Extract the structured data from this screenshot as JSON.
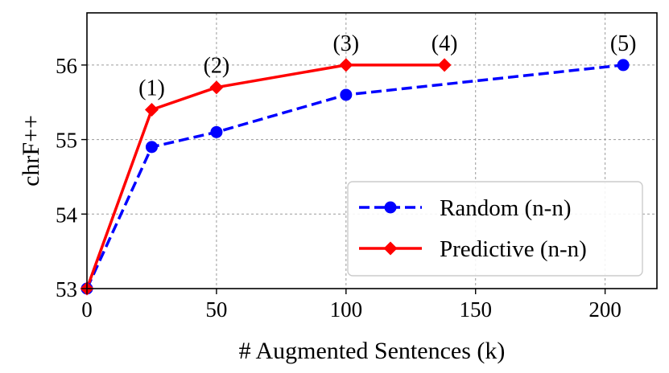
{
  "chart_data": {
    "type": "line",
    "title": "",
    "xlabel": "# Augmented Sentences (k)",
    "ylabel": "chrF++",
    "xlim": [
      0,
      220
    ],
    "ylim": [
      53,
      56.7
    ],
    "x_ticks": [
      0,
      50,
      100,
      150,
      200
    ],
    "y_ticks": [
      53,
      54,
      55,
      56
    ],
    "grid": true,
    "grid_style": "dashed",
    "legend_position": "lower-right",
    "series": [
      {
        "name": "Random (n-n)",
        "color": "#0000ff",
        "line_style": "dashed",
        "marker": "circle",
        "x": [
          0,
          25,
          50,
          100,
          207
        ],
        "y": [
          53.0,
          54.9,
          55.1,
          55.6,
          56.0
        ]
      },
      {
        "name": "Predictive (n-n)",
        "color": "#ff0000",
        "line_style": "solid",
        "marker": "diamond",
        "x": [
          0,
          25,
          50,
          100,
          138
        ],
        "y": [
          53.0,
          55.4,
          55.7,
          56.0,
          56.0
        ]
      }
    ],
    "annotations": [
      {
        "text": "(1)",
        "x": 25,
        "y": 55.4
      },
      {
        "text": "(2)",
        "x": 50,
        "y": 55.7
      },
      {
        "text": "(3)",
        "x": 100,
        "y": 56.0
      },
      {
        "text": "(4)",
        "x": 138,
        "y": 56.0
      },
      {
        "text": "(5)",
        "x": 207,
        "y": 56.0
      }
    ]
  }
}
